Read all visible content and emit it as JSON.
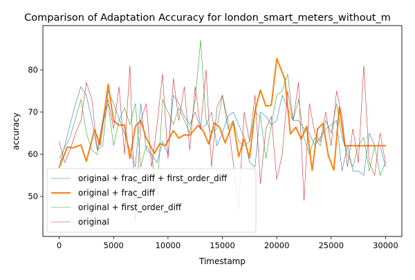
{
  "chart_data": {
    "type": "line",
    "title": "Comparison of Adaptation Accuracy for london_smart_meters_without_m",
    "xlabel": "Timestamp",
    "ylabel": "accuracy",
    "xlim": [
      -1500,
      31500
    ],
    "ylim": [
      40.5,
      90.5
    ],
    "xticks": [
      0,
      5000,
      10000,
      15000,
      20000,
      25000,
      30000
    ],
    "yticks": [
      50,
      60,
      70,
      80
    ],
    "grid": false,
    "legend_position": "lower-left",
    "series": [
      {
        "name": "original + frac_diff + first_order_diff",
        "color": "#1f77b4",
        "linewidth": 0.6,
        "x": [
          0,
          1500,
          2000,
          2500,
          3000,
          3500,
          4000,
          4500,
          5000,
          6000,
          6500,
          7000,
          7500,
          8000,
          8500,
          9000,
          9500,
          10000,
          10500,
          11000,
          11500,
          12000,
          12500,
          13000,
          13500,
          14000,
          14500,
          15000,
          15500,
          16000,
          16500,
          17000,
          17500,
          18000,
          18500,
          19000,
          19500,
          20000,
          20500,
          21000,
          21500,
          22000,
          22500,
          23000,
          23500,
          24000,
          24500,
          25000,
          25500,
          26000,
          26500,
          27000,
          27500,
          28000,
          28500,
          29000,
          29500,
          30000
        ],
        "values": [
          57,
          72,
          76,
          74,
          68,
          61,
          62,
          75,
          72,
          65,
          61,
          57,
          72,
          61,
          60,
          58,
          63,
          60,
          74,
          72,
          69,
          67,
          70,
          66,
          67,
          70,
          62,
          65,
          69,
          70,
          67,
          64,
          58,
          57,
          70,
          69,
          67,
          68,
          74,
          71,
          68,
          68,
          66,
          65,
          62,
          64,
          66,
          67,
          68,
          56,
          62,
          56,
          56,
          55,
          65,
          62,
          62,
          57
        ]
      },
      {
        "name": "original + frac_diff",
        "color": "#ff7f0e",
        "linewidth": 2.0,
        "x": [
          0,
          750,
          1250,
          2000,
          2500,
          3250,
          3750,
          4500,
          5000,
          5500,
          6000,
          6500,
          7000,
          7500,
          8000,
          8750,
          9250,
          9750,
          10500,
          11000,
          11500,
          12000,
          12750,
          13250,
          13750,
          14250,
          14750,
          15250,
          16000,
          16500,
          17000,
          17500,
          18000,
          18500,
          19000,
          19500,
          20000,
          20750,
          21250,
          21750,
          22250,
          22750,
          23250,
          23750,
          24250,
          24750,
          25250,
          25750,
          26250,
          26750,
          27250,
          27750,
          28250,
          28750,
          29250,
          30000
        ],
        "values": [
          56.9,
          61.7,
          61.5,
          62.2,
          58.3,
          65.8,
          62.2,
          76.6,
          67.9,
          66.9,
          66.9,
          59.0,
          66.6,
          68.0,
          63.8,
          60.2,
          62.5,
          62.0,
          65.6,
          63.8,
          64.6,
          64.5,
          66.8,
          65.5,
          62.4,
          67.4,
          66.4,
          62.7,
          67.6,
          59.4,
          63.7,
          59.1,
          70.3,
          75.2,
          71.4,
          71.6,
          82.7,
          77.8,
          64.8,
          66.4,
          63.6,
          66.6,
          56.2,
          66.0,
          67.3,
          59.6,
          56.2,
          71.2,
          62.0,
          62.0,
          62.0,
          62.0,
          62.0,
          62.0,
          62.0,
          62.0
        ]
      },
      {
        "name": "original + first_order_diff",
        "color": "#2ca02c",
        "linewidth": 0.6,
        "x": [
          0,
          1000,
          2000,
          2500,
          3000,
          3500,
          4000,
          4500,
          5000,
          5500,
          6000,
          6500,
          7000,
          7500,
          8000,
          8500,
          9000,
          9500,
          10000,
          10500,
          11000,
          11500,
          12000,
          12500,
          13000,
          13500,
          14000,
          14500,
          15000,
          15500,
          16000,
          16500,
          17000,
          17500,
          18000,
          18500,
          19000,
          19500,
          20000,
          20500,
          21000,
          21500,
          22000,
          22500,
          23000,
          23500,
          24000,
          24500,
          25000,
          25500,
          26000,
          26500,
          27000,
          27500,
          28000,
          28500,
          29000,
          29500,
          30000
        ],
        "values": [
          59,
          64,
          73,
          65,
          61,
          60,
          67,
          72,
          62,
          68,
          71,
          67,
          72,
          57,
          62,
          60,
          50,
          73,
          70,
          67,
          71,
          68,
          65,
          73,
          87,
          68,
          65,
          66,
          74,
          66,
          68,
          63,
          62,
          63,
          70,
          69,
          59,
          67,
          74,
          75,
          79,
          68,
          73,
          64,
          60,
          64,
          62,
          68,
          65,
          72,
          64,
          60,
          57,
          62,
          64,
          56,
          62,
          55,
          58
        ]
      },
      {
        "name": "original",
        "color": "#d62728",
        "linewidth": 0.6,
        "x": [
          0,
          500,
          1000,
          1500,
          2000,
          2500,
          3000,
          3500,
          4000,
          4500,
          5000,
          5500,
          6000,
          6500,
          7000,
          7500,
          8000,
          8500,
          9000,
          9500,
          10000,
          10500,
          11000,
          11500,
          12000,
          12500,
          13000,
          13500,
          14000,
          14500,
          15000,
          15500,
          16000,
          16500,
          17000,
          17500,
          18000,
          18500,
          19000,
          19500,
          20000,
          20500,
          21000,
          21500,
          22000,
          22500,
          23000,
          23500,
          24000,
          24500,
          25000,
          25500,
          26000,
          26500,
          27000,
          27500,
          28000,
          28500,
          29000,
          29500,
          30000
        ],
        "values": [
          63,
          58,
          61,
          65,
          68,
          77,
          73,
          61,
          68,
          73,
          66,
          76,
          60,
          81,
          44,
          68,
          72,
          57,
          67,
          79,
          59,
          78,
          68,
          76,
          61,
          76,
          66,
          80,
          57,
          71,
          74,
          68,
          58,
          47,
          70,
          63,
          74,
          53,
          66,
          69,
          54,
          60,
          75,
          68,
          77,
          49,
          72,
          65,
          63,
          70,
          62,
          75,
          69,
          57,
          66,
          58,
          81,
          58,
          55,
          65,
          58
        ]
      }
    ]
  }
}
